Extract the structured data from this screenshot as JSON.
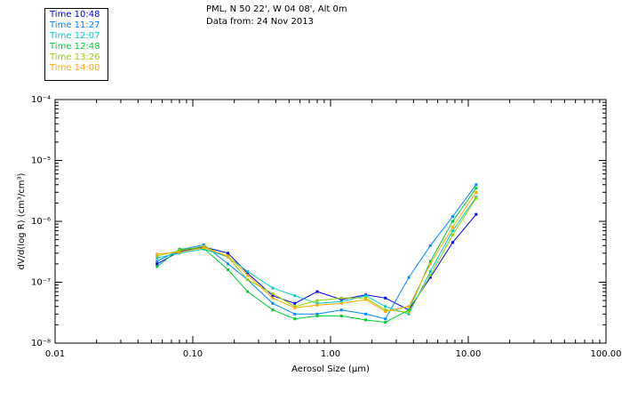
{
  "header": {
    "station": "PML, N 50 22', W 04 08', Alt 0m",
    "data_from": "Data from: 24 Nov 2013"
  },
  "legend": [
    {
      "label": "Time 10:48",
      "color": "#0000ee"
    },
    {
      "label": "Time 11:27",
      "color": "#0088ff"
    },
    {
      "label": "Time 12:07",
      "color": "#00cccc"
    },
    {
      "label": "Time 12:48",
      "color": "#00cc33"
    },
    {
      "label": "Time 13:26",
      "color": "#99cc00"
    },
    {
      "label": "Time 14:00",
      "color": "#ffaa00"
    }
  ],
  "chart_data": {
    "type": "line",
    "title": "",
    "xlabel": "Aerosol Size (µm)",
    "ylabel": "dV/d(log R) (cm³/cm³)",
    "xscale": "log",
    "yscale": "log",
    "xlim": [
      0.01,
      100
    ],
    "ylim": [
      1e-08,
      0.0001
    ],
    "x_tick_labels": [
      "0.01",
      "0.10",
      "1.00",
      "10.00",
      "100.00"
    ],
    "y_tick_labels": [
      "10⁻⁸",
      "10⁻⁷",
      "10⁻⁶",
      "10⁻⁵",
      "10⁻⁴"
    ],
    "legend_position": "top-left, outside plot",
    "x": [
      0.055,
      0.08,
      0.12,
      0.18,
      0.25,
      0.38,
      0.55,
      0.8,
      1.2,
      1.8,
      2.5,
      3.7,
      5.3,
      7.7,
      11.4
    ],
    "series": [
      {
        "name": "Time 10:48",
        "color": "#0000ee",
        "values": [
          2e-07,
          3.2e-07,
          3.8e-07,
          3e-07,
          1.4e-07,
          6e-08,
          4.5e-08,
          7e-08,
          5.2e-08,
          6.2e-08,
          5.5e-08,
          3.5e-08,
          1.2e-07,
          4.5e-07,
          1.3e-06
        ]
      },
      {
        "name": "Time 11:27",
        "color": "#0088ff",
        "values": [
          2.2e-07,
          3.4e-07,
          4.1e-07,
          2e-07,
          1.1e-07,
          4.5e-08,
          3e-08,
          3e-08,
          3.5e-08,
          3e-08,
          2.5e-08,
          1.2e-07,
          4e-07,
          1.2e-06,
          4e-06
        ]
      },
      {
        "name": "Time 12:07",
        "color": "#00cccc",
        "values": [
          2.5e-07,
          3e-07,
          3.5e-07,
          2.6e-07,
          1.5e-07,
          8e-08,
          6e-08,
          4.5e-08,
          4.8e-08,
          6e-08,
          4e-08,
          3e-08,
          1.5e-07,
          7e-07,
          2.5e-06
        ]
      },
      {
        "name": "Time 12:48",
        "color": "#00cc33",
        "values": [
          1.8e-07,
          3.5e-07,
          3.6e-07,
          1.6e-07,
          7e-08,
          3.5e-08,
          2.5e-08,
          2.8e-08,
          2.8e-08,
          2.4e-08,
          2.2e-08,
          3.5e-08,
          2.2e-07,
          1e-06,
          3.5e-06
        ]
      },
      {
        "name": "Time 13:26",
        "color": "#99cc00",
        "values": [
          2.7e-07,
          3.3e-07,
          3.9e-07,
          2.6e-07,
          1.1e-07,
          6.5e-08,
          4e-08,
          5e-08,
          5.5e-08,
          5.5e-08,
          3.5e-08,
          3.2e-08,
          1.3e-07,
          6e-07,
          2.4e-06
        ]
      },
      {
        "name": "Time 14:00",
        "color": "#ffaa00",
        "values": [
          2.9e-07,
          3.1e-07,
          3.7e-07,
          2.7e-07,
          1.3e-07,
          5.5e-08,
          3.8e-08,
          4.2e-08,
          4.5e-08,
          5.2e-08,
          3.3e-08,
          4e-08,
          2e-07,
          8e-07,
          3e-06
        ]
      }
    ]
  }
}
